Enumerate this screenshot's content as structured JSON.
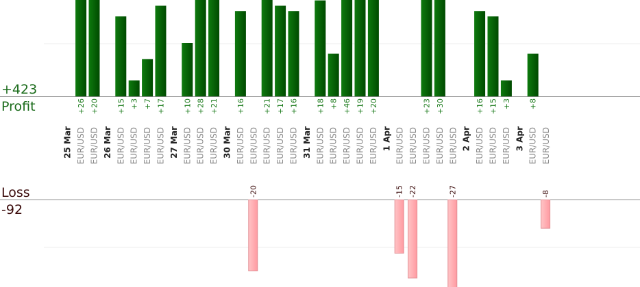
{
  "summary": {
    "profit_total": "+423",
    "profit_label": "Profit",
    "loss_label": "Loss",
    "loss_total": "-92"
  },
  "colors": {
    "profit_bar": "#0a6a0a",
    "profit_bar_dark": "#005000",
    "profit_value": "#1a7a1a",
    "loss_bar_fill": "#ffb6b9",
    "loss_bar_stroke": "#e08f95",
    "loss_value": "#3a0a0a",
    "pair_label": "#8a8a8a",
    "date_label": "#222222",
    "axis": "#888888",
    "grid": "#eeeeee"
  },
  "chart_data": {
    "type": "bar",
    "instrument": "EUR/USD",
    "dates": [
      {
        "date": "25 Mar",
        "trades": [
          26,
          20
        ]
      },
      {
        "date": "26 Mar",
        "trades": [
          15,
          3,
          7,
          17
        ]
      },
      {
        "date": "27 Mar",
        "trades": [
          10,
          28,
          21
        ]
      },
      {
        "date": "30 Mar",
        "trades": [
          16,
          -20,
          21,
          17,
          16
        ]
      },
      {
        "date": "31 Mar",
        "trades": [
          18,
          8,
          46,
          19,
          20
        ]
      },
      {
        "date": "1 Apr",
        "trades": [
          -15,
          -22,
          23,
          30,
          -27
        ]
      },
      {
        "date": "2 Apr",
        "trades": [
          16,
          15,
          3
        ]
      },
      {
        "date": "3 Apr",
        "trades": [
          8,
          -8
        ]
      }
    ]
  }
}
